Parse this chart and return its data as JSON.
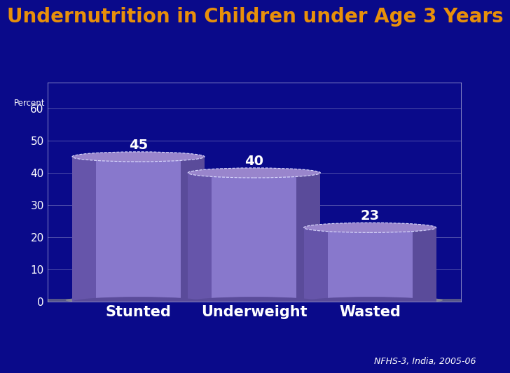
{
  "title": "Undernutrition in Children under Age 3 Years",
  "title_color": "#E8900A",
  "title_fontsize": 20,
  "background_color": "#0A0A8A",
  "categories": [
    "Stunted",
    "Underweight",
    "Wasted"
  ],
  "values": [
    45,
    40,
    23
  ],
  "bar_color_center": "#8878CC",
  "bar_color_left": "#6655AA",
  "bar_color_right": "#5A4B9A",
  "bar_top_color": "#9985CC",
  "bar_top_edge": "#DDDDFF",
  "floor_color": "#AAAAAA",
  "ylabel": "Percent",
  "ylabel_color": "#FFFFFF",
  "yticks": [
    0,
    10,
    20,
    30,
    40,
    50,
    60
  ],
  "ylim": [
    0,
    68
  ],
  "tick_color": "#FFFFFF",
  "grid_color": "#FFFFFF",
  "xticklabel_color": "#FFFFFF",
  "value_color": "#FFFFFF",
  "value_fontsize": 14,
  "xlabel_fontsize": 15,
  "source_text": "NFHS-3, India, 2005-06",
  "source_color": "#FFFFFF",
  "source_fontsize": 9,
  "bar_width": 0.32,
  "bar_positions": [
    0.22,
    0.5,
    0.78
  ]
}
